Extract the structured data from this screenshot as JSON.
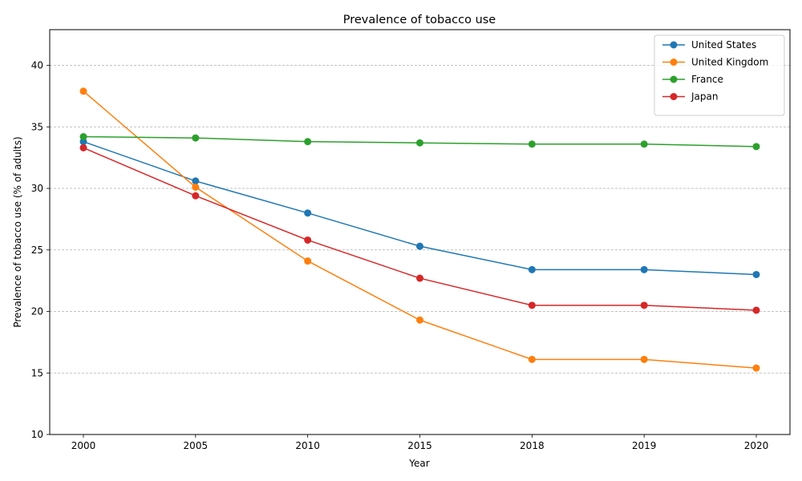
{
  "chart_data": {
    "type": "line",
    "title": "Prevalence of tobacco use",
    "xlabel": "Year",
    "ylabel": "Prevalence of tobacco use (% of adults)",
    "categories": [
      "2000",
      "2005",
      "2010",
      "2015",
      "2018",
      "2019",
      "2020"
    ],
    "ylim": [
      10,
      42.9
    ],
    "yticks": [
      10,
      15,
      20,
      25,
      30,
      35,
      40
    ],
    "grid": "y-dashed",
    "legend_position": "top-right",
    "series": [
      {
        "name": "United States",
        "color": "#1f77b4",
        "values": [
          33.8,
          30.6,
          28.0,
          25.3,
          23.4,
          23.4,
          23.0
        ]
      },
      {
        "name": "United Kingdom",
        "color": "#ff7f0e",
        "values": [
          37.9,
          30.1,
          24.1,
          19.3,
          16.1,
          16.1,
          15.4
        ]
      },
      {
        "name": "France",
        "color": "#2ca02c",
        "values": [
          34.2,
          34.1,
          33.8,
          33.7,
          33.6,
          33.6,
          33.4
        ]
      },
      {
        "name": "Japan",
        "color": "#d62728",
        "values": [
          33.3,
          29.4,
          25.8,
          22.7,
          20.5,
          20.5,
          20.1
        ]
      }
    ]
  }
}
